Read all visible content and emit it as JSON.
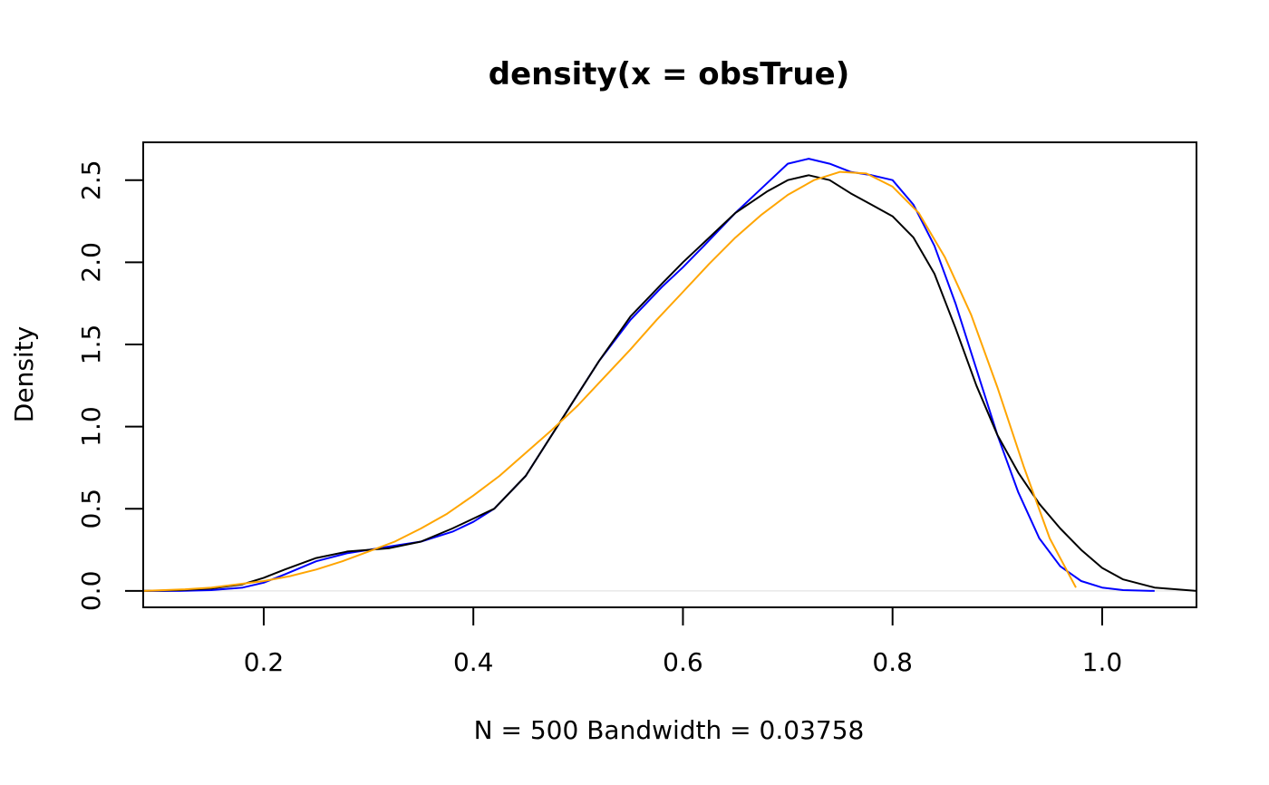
{
  "chart_data": {
    "type": "line",
    "title": "density(x = obsTrue)",
    "xlabel": "N = 500   Bandwidth = 0.03758",
    "ylabel": "Density",
    "xlim": [
      0.085,
      1.09
    ],
    "ylim": [
      -0.1,
      2.73
    ],
    "xticks": [
      0.2,
      0.4,
      0.6,
      0.8,
      1.0
    ],
    "xtick_labels": [
      "0.2",
      "0.4",
      "0.6",
      "0.8",
      "1.0"
    ],
    "yticks": [
      0.0,
      0.5,
      1.0,
      1.5,
      2.0,
      2.5
    ],
    "ytick_labels": [
      "0.0",
      "0.5",
      "1.0",
      "1.5",
      "2.0",
      "2.5"
    ],
    "grid": false,
    "zero_line": true,
    "colors": {
      "axis": "#000000",
      "zero_line": "#dddddd"
    },
    "series": [
      {
        "color": "#0000ff",
        "x": [
          0.085,
          0.12,
          0.15,
          0.18,
          0.2,
          0.22,
          0.25,
          0.28,
          0.3,
          0.32,
          0.35,
          0.38,
          0.4,
          0.42,
          0.45,
          0.48,
          0.5,
          0.52,
          0.55,
          0.58,
          0.6,
          0.62,
          0.65,
          0.68,
          0.7,
          0.72,
          0.74,
          0.76,
          0.78,
          0.8,
          0.82,
          0.84,
          0.86,
          0.88,
          0.9,
          0.92,
          0.94,
          0.96,
          0.98,
          1.0,
          1.02,
          1.05
        ],
        "y": [
          0.0,
          0.0,
          0.005,
          0.02,
          0.05,
          0.1,
          0.18,
          0.23,
          0.25,
          0.27,
          0.3,
          0.36,
          0.42,
          0.5,
          0.7,
          1.0,
          1.2,
          1.4,
          1.65,
          1.85,
          1.97,
          2.1,
          2.3,
          2.48,
          2.6,
          2.63,
          2.6,
          2.55,
          2.53,
          2.5,
          2.35,
          2.1,
          1.75,
          1.35,
          0.95,
          0.6,
          0.32,
          0.15,
          0.06,
          0.02,
          0.005,
          0.0
        ]
      },
      {
        "color": "#000000",
        "x": [
          0.085,
          0.12,
          0.15,
          0.18,
          0.2,
          0.22,
          0.25,
          0.28,
          0.3,
          0.32,
          0.35,
          0.38,
          0.4,
          0.42,
          0.45,
          0.48,
          0.5,
          0.52,
          0.55,
          0.58,
          0.6,
          0.62,
          0.65,
          0.68,
          0.7,
          0.72,
          0.74,
          0.76,
          0.78,
          0.8,
          0.82,
          0.84,
          0.86,
          0.88,
          0.9,
          0.92,
          0.94,
          0.96,
          0.98,
          1.0,
          1.02,
          1.05,
          1.09
        ],
        "y": [
          0.0,
          0.005,
          0.015,
          0.04,
          0.08,
          0.13,
          0.2,
          0.24,
          0.25,
          0.26,
          0.3,
          0.38,
          0.44,
          0.5,
          0.7,
          1.0,
          1.2,
          1.4,
          1.67,
          1.87,
          2.0,
          2.12,
          2.3,
          2.43,
          2.5,
          2.53,
          2.5,
          2.42,
          2.35,
          2.28,
          2.15,
          1.93,
          1.6,
          1.25,
          0.95,
          0.72,
          0.53,
          0.38,
          0.25,
          0.14,
          0.07,
          0.02,
          0.0
        ]
      },
      {
        "color": "#ffa500",
        "x": [
          0.085,
          0.125,
          0.15,
          0.175,
          0.2,
          0.225,
          0.25,
          0.275,
          0.3,
          0.325,
          0.35,
          0.375,
          0.4,
          0.425,
          0.45,
          0.475,
          0.5,
          0.525,
          0.55,
          0.575,
          0.6,
          0.625,
          0.65,
          0.675,
          0.7,
          0.725,
          0.75,
          0.775,
          0.8,
          0.825,
          0.85,
          0.875,
          0.9,
          0.925,
          0.95,
          0.975
        ],
        "y": [
          0.0,
          0.01,
          0.02,
          0.04,
          0.06,
          0.09,
          0.13,
          0.18,
          0.24,
          0.3,
          0.38,
          0.47,
          0.58,
          0.7,
          0.84,
          0.98,
          1.13,
          1.3,
          1.47,
          1.65,
          1.82,
          1.99,
          2.15,
          2.29,
          2.41,
          2.5,
          2.55,
          2.54,
          2.46,
          2.3,
          2.03,
          1.68,
          1.24,
          0.76,
          0.32,
          0.02
        ]
      }
    ]
  }
}
